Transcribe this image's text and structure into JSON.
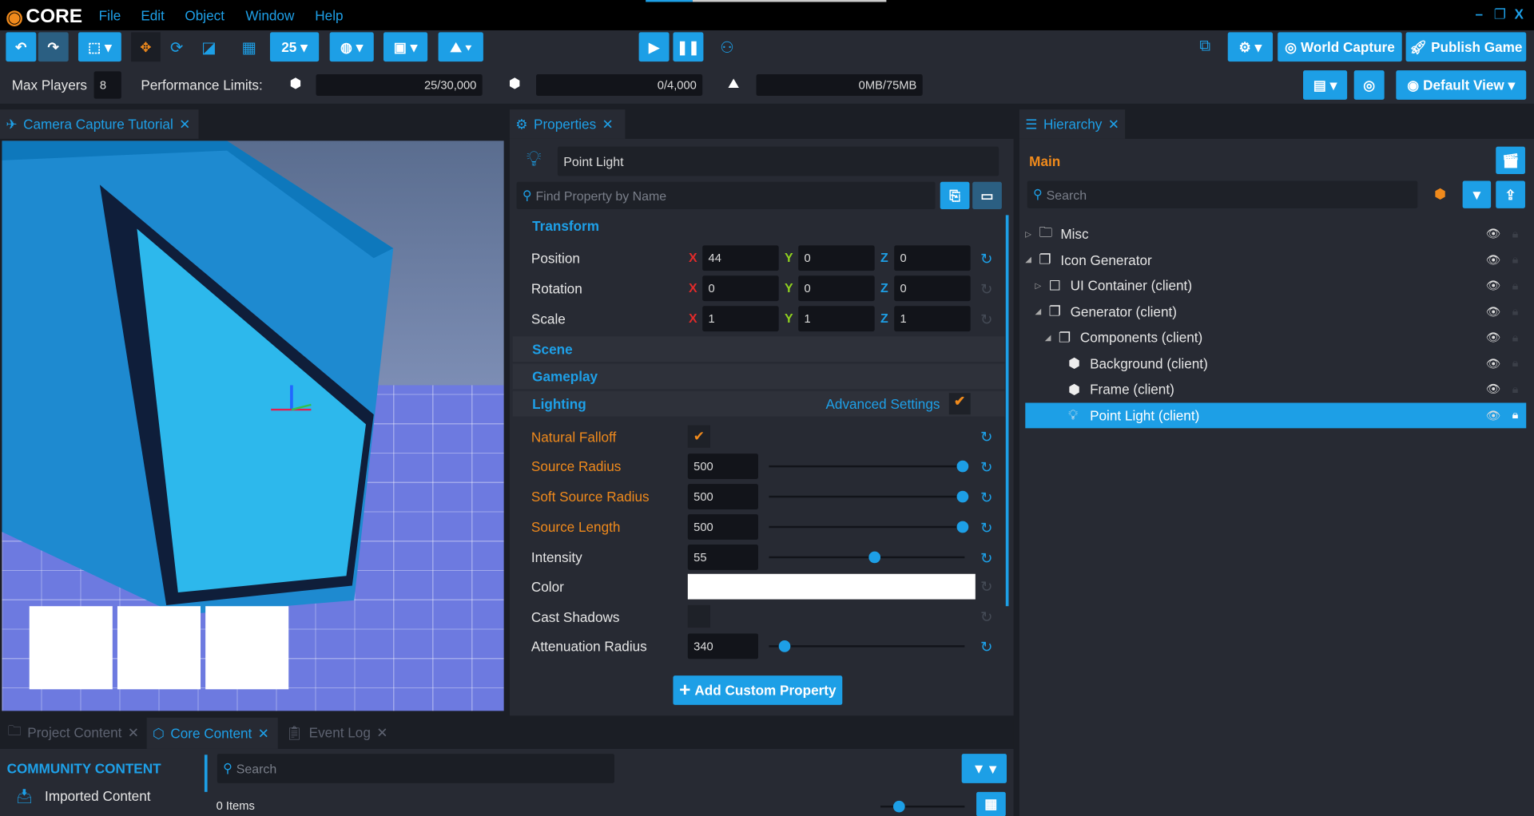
{
  "app": {
    "logo": "CORE",
    "menu": [
      "File",
      "Edit",
      "Object",
      "Window",
      "Help"
    ],
    "window_controls": [
      "minimize",
      "restore",
      "close"
    ]
  },
  "toolbar": {
    "grid_size": "25",
    "world_capture": "World Capture",
    "publish": "Publish Game",
    "default_view": "Default View"
  },
  "limits": {
    "max_players_label": "Max Players",
    "max_players": "8",
    "perf_label": "Performance Limits:",
    "objects": "25/30,000",
    "networked": "0/4,000",
    "memory": "0MB/75MB"
  },
  "viewport": {
    "tab": "Camera Capture Tutorial"
  },
  "properties": {
    "tab": "Properties",
    "object_name": "Point Light",
    "search_placeholder": "Find Property by Name",
    "transform": {
      "title": "Transform",
      "rows": [
        {
          "label": "Position",
          "x": "44",
          "y": "0",
          "z": "0"
        },
        {
          "label": "Rotation",
          "x": "0",
          "y": "0",
          "z": "0"
        },
        {
          "label": "Scale",
          "x": "1",
          "y": "1",
          "z": "1"
        }
      ]
    },
    "scene": "Scene",
    "gameplay": "Gameplay",
    "lighting": "Lighting",
    "advanced": "Advanced Settings",
    "natural_falloff": "Natural Falloff",
    "sliders": [
      {
        "label": "Source Radius",
        "value": "500",
        "fraction": 1.0,
        "modified": true
      },
      {
        "label": "Soft Source Radius",
        "value": "500",
        "fraction": 1.0,
        "modified": true
      },
      {
        "label": "Source Length",
        "value": "500",
        "fraction": 1.0,
        "modified": true
      },
      {
        "label": "Intensity",
        "value": "55",
        "fraction": 0.55,
        "modified": false
      }
    ],
    "color": "Color",
    "color_value": "#ffffff",
    "cast_shadows": "Cast Shadows",
    "atten_label": "Attenuation Radius",
    "atten_value": "340",
    "atten_fraction": 0.08,
    "add_custom": "Add Custom Property"
  },
  "hierarchy": {
    "tab": "Hierarchy",
    "root": "Main",
    "search_placeholder": "Search",
    "items": [
      {
        "label": "Misc",
        "indent": 0,
        "icon": "folder"
      },
      {
        "label": "Icon Generator",
        "indent": 0,
        "icon": "group"
      },
      {
        "label": "UI Container (client)",
        "indent": 1,
        "icon": "ui"
      },
      {
        "label": "Generator (client)",
        "indent": 1,
        "icon": "group"
      },
      {
        "label": "Components (client)",
        "indent": 2,
        "icon": "group"
      },
      {
        "label": "Background (client)",
        "indent": 3,
        "icon": "cube"
      },
      {
        "label": "Frame (client)",
        "indent": 3,
        "icon": "cube"
      },
      {
        "label": "Point Light (client)",
        "indent": 3,
        "icon": "light",
        "selected": true
      }
    ]
  },
  "bottom": {
    "tabs": [
      "Project Content",
      "Core Content",
      "Event Log"
    ],
    "community": "COMMUNITY CONTENT",
    "imported": "Imported Content",
    "search_placeholder": "Search",
    "items_count": "0 Items"
  },
  "colors": {
    "accent": "#1d9fe6",
    "orange": "#f08a1c",
    "panel": "#272a33"
  }
}
